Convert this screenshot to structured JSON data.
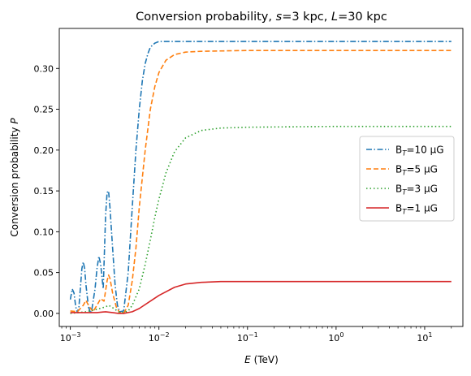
{
  "chart_data": {
    "type": "line",
    "title_parts": [
      {
        "text": "Conversion probability, ",
        "italic": false
      },
      {
        "text": "s",
        "italic": true
      },
      {
        "text": "=3 kpc, ",
        "italic": false
      },
      {
        "text": "L",
        "italic": true
      },
      {
        "text": "=30 kpc",
        "italic": false
      }
    ],
    "xlabel_parts": [
      {
        "text": "E",
        "italic": true
      },
      {
        "text": " (TeV)",
        "italic": false
      }
    ],
    "ylabel_parts": [
      {
        "text": "Conversion probability ",
        "italic": false
      },
      {
        "text": "P",
        "italic": true
      }
    ],
    "x_scale": "log",
    "xlim": [
      0.00075,
      27
    ],
    "ylim": [
      -0.016,
      0.349
    ],
    "x_ticks": [
      {
        "value": 0.001,
        "base": "10",
        "exp": "−3"
      },
      {
        "value": 0.01,
        "base": "10",
        "exp": "−2"
      },
      {
        "value": 0.1,
        "base": "10",
        "exp": "−1"
      },
      {
        "value": 1,
        "base": "10",
        "exp": "0"
      },
      {
        "value": 10,
        "base": "10",
        "exp": "1"
      }
    ],
    "y_ticks": [
      {
        "value": 0.0,
        "label": "0.00"
      },
      {
        "value": 0.05,
        "label": "0.05"
      },
      {
        "value": 0.1,
        "label": "0.10"
      },
      {
        "value": 0.15,
        "label": "0.15"
      },
      {
        "value": 0.2,
        "label": "0.20"
      },
      {
        "value": 0.25,
        "label": "0.25"
      },
      {
        "value": 0.3,
        "label": "0.30"
      }
    ],
    "grid": false,
    "legend_position": "center-right",
    "series": [
      {
        "name": "B_T=10 μG",
        "name_parts": [
          "B",
          "T",
          "=10 μG"
        ],
        "color": "#1f77b4",
        "dash": "dashdot",
        "points": [
          [
            0.001,
            0.017
          ],
          [
            0.00105,
            0.03
          ],
          [
            0.0011,
            0.025
          ],
          [
            0.00115,
            0.008
          ],
          [
            0.0012,
            0.001
          ],
          [
            0.00125,
            0.008
          ],
          [
            0.0013,
            0.032
          ],
          [
            0.00135,
            0.055
          ],
          [
            0.0014,
            0.063
          ],
          [
            0.00145,
            0.055
          ],
          [
            0.0015,
            0.035
          ],
          [
            0.0016,
            0.008
          ],
          [
            0.0017,
            0.0
          ],
          [
            0.00175,
            0.005
          ],
          [
            0.0019,
            0.03
          ],
          [
            0.002,
            0.055
          ],
          [
            0.0021,
            0.07
          ],
          [
            0.0022,
            0.06
          ],
          [
            0.00235,
            0.03
          ],
          [
            0.0024,
            0.06
          ],
          [
            0.0025,
            0.12
          ],
          [
            0.0026,
            0.148
          ],
          [
            0.0027,
            0.15
          ],
          [
            0.0028,
            0.13
          ],
          [
            0.003,
            0.08
          ],
          [
            0.0032,
            0.035
          ],
          [
            0.0034,
            0.01
          ],
          [
            0.0036,
            0.002
          ],
          [
            0.004,
            0.003
          ],
          [
            0.0045,
            0.05
          ],
          [
            0.005,
            0.13
          ],
          [
            0.0055,
            0.2
          ],
          [
            0.006,
            0.25
          ],
          [
            0.0065,
            0.285
          ],
          [
            0.007,
            0.306
          ],
          [
            0.0075,
            0.318
          ],
          [
            0.008,
            0.326
          ],
          [
            0.009,
            0.331
          ],
          [
            0.01,
            0.333
          ],
          [
            0.02,
            0.333
          ],
          [
            0.1,
            0.333
          ],
          [
            1,
            0.333
          ],
          [
            10,
            0.333
          ],
          [
            20,
            0.333
          ]
        ]
      },
      {
        "name": "B_T=5 μG",
        "name_parts": [
          "B",
          "T",
          "=5 μG"
        ],
        "color": "#ff7f0e",
        "dash": "dashed",
        "points": [
          [
            0.001,
            0.003
          ],
          [
            0.0012,
            0.002
          ],
          [
            0.0014,
            0.01
          ],
          [
            0.0015,
            0.016
          ],
          [
            0.0016,
            0.01
          ],
          [
            0.0018,
            0.002
          ],
          [
            0.002,
            0.01
          ],
          [
            0.0022,
            0.018
          ],
          [
            0.0024,
            0.015
          ],
          [
            0.0026,
            0.04
          ],
          [
            0.0027,
            0.047
          ],
          [
            0.0028,
            0.043
          ],
          [
            0.003,
            0.025
          ],
          [
            0.0033,
            0.008
          ],
          [
            0.0036,
            0.001
          ],
          [
            0.004,
            0.0
          ],
          [
            0.0045,
            0.01
          ],
          [
            0.005,
            0.04
          ],
          [
            0.0055,
            0.08
          ],
          [
            0.006,
            0.13
          ],
          [
            0.007,
            0.2
          ],
          [
            0.008,
            0.25
          ],
          [
            0.009,
            0.278
          ],
          [
            0.01,
            0.295
          ],
          [
            0.012,
            0.31
          ],
          [
            0.015,
            0.317
          ],
          [
            0.02,
            0.32
          ],
          [
            0.03,
            0.321
          ],
          [
            0.1,
            0.322
          ],
          [
            1,
            0.322
          ],
          [
            10,
            0.322
          ],
          [
            20,
            0.322
          ]
        ]
      },
      {
        "name": "B_T=3 μG",
        "name_parts": [
          "B",
          "T",
          "=3 μG"
        ],
        "color": "#2ca02c",
        "dash": "dotted",
        "points": [
          [
            0.001,
            0.0
          ],
          [
            0.0015,
            0.002
          ],
          [
            0.002,
            0.005
          ],
          [
            0.0025,
            0.008
          ],
          [
            0.0027,
            0.01
          ],
          [
            0.003,
            0.007
          ],
          [
            0.0035,
            0.002
          ],
          [
            0.004,
            0.001
          ],
          [
            0.0045,
            0.003
          ],
          [
            0.005,
            0.01
          ],
          [
            0.006,
            0.03
          ],
          [
            0.007,
            0.06
          ],
          [
            0.008,
            0.09
          ],
          [
            0.009,
            0.118
          ],
          [
            0.01,
            0.14
          ],
          [
            0.012,
            0.172
          ],
          [
            0.015,
            0.198
          ],
          [
            0.02,
            0.215
          ],
          [
            0.03,
            0.224
          ],
          [
            0.05,
            0.227
          ],
          [
            0.1,
            0.228
          ],
          [
            1,
            0.229
          ],
          [
            10,
            0.229
          ],
          [
            20,
            0.229
          ]
        ]
      },
      {
        "name": "B_T=1 μG",
        "name_parts": [
          "B",
          "T",
          "=1 μG"
        ],
        "color": "#d62728",
        "dash": "solid",
        "points": [
          [
            0.001,
            0.001
          ],
          [
            0.0015,
            0.001
          ],
          [
            0.002,
            0.001
          ],
          [
            0.0025,
            0.002
          ],
          [
            0.003,
            0.001
          ],
          [
            0.0035,
            0.0
          ],
          [
            0.004,
            0.0
          ],
          [
            0.005,
            0.002
          ],
          [
            0.006,
            0.006
          ],
          [
            0.008,
            0.015
          ],
          [
            0.01,
            0.022
          ],
          [
            0.015,
            0.032
          ],
          [
            0.02,
            0.036
          ],
          [
            0.03,
            0.038
          ],
          [
            0.05,
            0.039
          ],
          [
            0.1,
            0.039
          ],
          [
            1,
            0.039
          ],
          [
            10,
            0.039
          ],
          [
            20,
            0.039
          ]
        ]
      }
    ]
  }
}
